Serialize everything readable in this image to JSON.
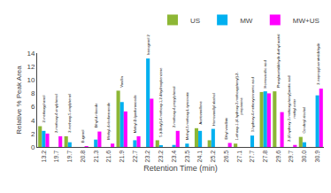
{
  "chart_data": {
    "type": "bar",
    "categories": [
      "13.2",
      "19.7",
      "19.7",
      "20.8",
      "21.3",
      "21.6",
      "21.9",
      "22.7",
      "23.2",
      "23.2",
      "23.4",
      "23.5",
      "24.1",
      "25.2",
      "26.5",
      "27.1",
      "27.7",
      "27.8",
      "29.6",
      "29.7",
      "30.0",
      "30.9"
    ],
    "series": [
      {
        "name": "US",
        "color": "#8db735",
        "values": [
          3.1,
          0.0,
          1.6,
          0.0,
          0.0,
          0.0,
          8.4,
          0.0,
          0.0,
          1.0,
          0.0,
          0.0,
          2.8,
          1.0,
          0.0,
          0.5,
          0.0,
          8.2,
          8.3,
          0.0,
          1.5,
          0.0
        ]
      },
      {
        "name": "MW",
        "color": "#00b0f0",
        "values": [
          2.4,
          0.0,
          0.7,
          0.0,
          1.1,
          0.0,
          6.7,
          1.0,
          13.2,
          0.2,
          0.3,
          0.5,
          2.4,
          2.7,
          0.0,
          0.0,
          1.7,
          8.3,
          0.0,
          0.0,
          0.7,
          7.7
        ]
      },
      {
        "name": "MW+US",
        "color": "#ff00ff",
        "values": [
          2.0,
          1.6,
          0.0,
          0.1,
          2.3,
          0.5,
          5.3,
          1.6,
          7.2,
          0.0,
          2.4,
          0.0,
          0.0,
          0.0,
          0.6,
          0.0,
          0.0,
          8.0,
          5.2,
          0.3,
          0.0,
          8.7
        ]
      }
    ],
    "annotations": [
      "2-methoxyphenol",
      "2-methoxy-4-vinylphenol",
      "2-methoxy-5-vinylphenol",
      "Eugenol",
      "Ethyl-d-riboside",
      "Methyl-d-ribofuranoside",
      "Vanillin",
      "Methyl-D-lyxofuranoside",
      "Isoeugenol 2",
      "5-(t-Butyl)-4-methoxy-1,2-dihydroxybenzene",
      "2-methoxy-4-propylphenol",
      "Methyl-3-methoxy-L-tyrosinate",
      "Acetovanillone",
      "Homovanillyl alcohol",
      "Ethyl vanillate",
      "1-ethoxy-1-(4-hydroxy-3-methoxyphenyl)-2-\npropanone",
      "3-hydroxy-4-methoxycinnamic acid",
      "Homovanillic acid",
      "Phenylacetaldehyde diethyl acetal",
      "2-(4-hydroxy-3-methoxyphenyl)acetic acid\nmethyl ester",
      "Coniferyl alcohol",
      "2-isopropyl-veratraldehyde"
    ],
    "xlabel": "Retention Time (min)",
    "ylabel": "Relative % Peak Area",
    "ylim": [
      0,
      14
    ],
    "yticks": [
      0,
      2,
      4,
      6,
      8,
      10,
      12,
      14
    ],
    "legend": "upper right",
    "grid": false
  }
}
